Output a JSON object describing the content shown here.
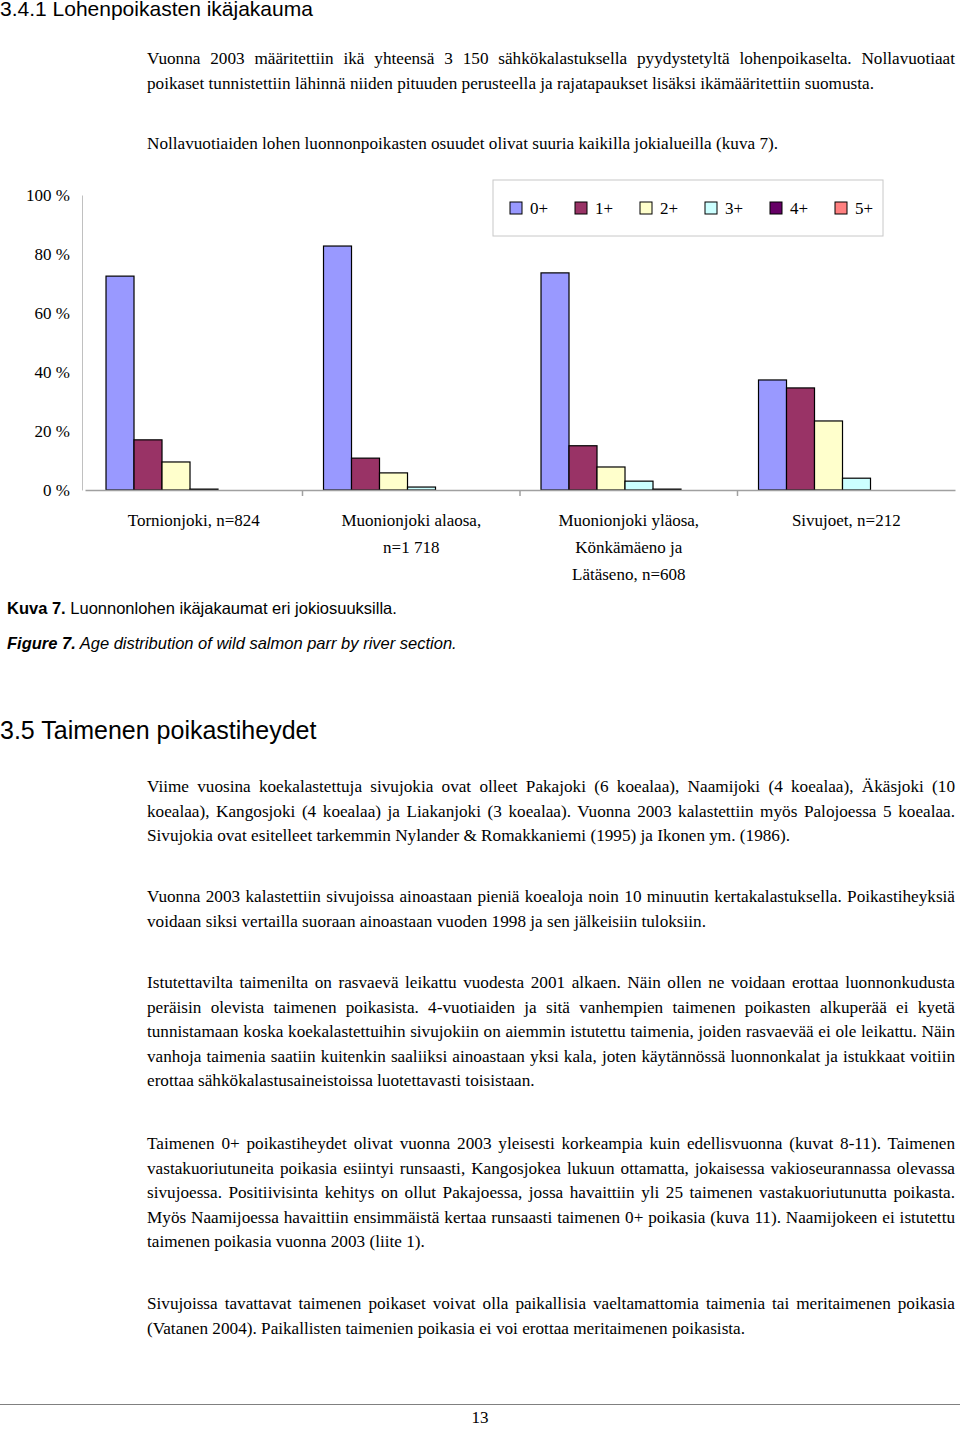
{
  "section_title": "3.4.1 Lohenpoikasten ikäjakauma",
  "paragraphs_before": [
    "Vuonna 2003 määritettiin ikä yhteensä 3 150 sähkökalastuksella pyydystetyltä lohenpoikaselta. Nollavuotiaat poikaset tunnistettiin lähinnä niiden pituuden perusteella ja rajatapaukset lisäksi ikämääritettiin suomusta.",
    "Nollavuotiaiden lohen luonnonpoikasten osuudet olivat suuria kaikilla jokialueilla (kuva 7)."
  ],
  "chart_data": {
    "type": "bar",
    "categories": [
      "Tornionjoki, n=824",
      "Muonionjoki alaosa,\nn=1 718",
      "Muonionjoki yläosa,\nKönkämäeno ja\nLätäseno, n=608",
      "Sivujoet, n=212"
    ],
    "series": [
      {
        "name": "0+",
        "color": "#9999ff",
        "values": [
          72.5,
          82.7,
          73.6,
          37.3
        ]
      },
      {
        "name": "1+",
        "color": "#993366",
        "values": [
          17,
          10.8,
          15,
          34.6
        ]
      },
      {
        "name": "2+",
        "color": "#ffffcc",
        "values": [
          9.5,
          5.8,
          7.8,
          23.4
        ]
      },
      {
        "name": "3+",
        "color": "#ccffff",
        "values": [
          0.3,
          1,
          3,
          4
        ]
      },
      {
        "name": "4+",
        "color": "#660066",
        "values": [
          0,
          0,
          0.3,
          0
        ]
      },
      {
        "name": "5+",
        "color": "#ff8080",
        "values": [
          0,
          0,
          0,
          0
        ]
      }
    ],
    "ylim": [
      0,
      100
    ],
    "yticks": [
      {
        "value": 0,
        "label": "0 %"
      },
      {
        "value": 20,
        "label": "20 %"
      },
      {
        "value": 40,
        "label": "40 %"
      },
      {
        "value": 60,
        "label": "60 %"
      },
      {
        "value": 80,
        "label": "80 %"
      },
      {
        "value": 100,
        "label": "100 %"
      }
    ],
    "grid": false,
    "legend": "top-right"
  },
  "captions": [
    {
      "label": "Kuva 7.",
      "text": "Luonnonlohen ikäjakaumat eri jokiosuuksilla."
    },
    {
      "label": "Figure 7.",
      "text": "Age distribution of wild salmon parr by river section."
    }
  ],
  "section2_title": "3.5 Taimenen poikastiheydet",
  "paragraphs_after": [
    "Viime vuosina koekalastettuja sivujokia ovat olleet Pakajoki (6 koealaa), Naamijoki (4 koealaa), Äkäsjoki (10 koealaa), Kangosjoki (4 koealaa) ja Liakanjoki (3 koealaa). Vuonna 2003 kalastettiin myös Palojoessa 5 koealaa. Sivujokia ovat esitelleet tarkemmin Nylander & Romakkaniemi (1995) ja Ikonen ym. (1986).",
    "Vuonna 2003 kalastettiin sivujoissa ainoastaan pieniä koealoja noin 10 minuutin kertakalastuksella. Poikastiheyksiä voidaan siksi vertailla suoraan ainoastaan vuoden 1998 ja sen jälkeisiin tuloksiin.",
    "Istutettavilta taimenilta on rasvaevä leikattu vuodesta 2001 alkaen. Näin ollen ne voidaan erottaa luonnonkudusta peräisin olevista taimenen poikasista. 4-vuotiaiden ja sitä vanhempien taimenen poikasten alkuperää ei kyetä tunnistamaan koska koekalastettuihin sivujokiin on aiemmin istutettu taimenia, joiden rasvaevää ei ole leikattu. Näin vanhoja taimenia saatiin kuitenkin saaliiksi ainoastaan yksi kala, joten käytännössä luonnonkalat ja istukkaat voitiin erottaa sähkökalastusaineistoissa luotettavasti toisistaan.",
    "Taimenen 0+ poikastiheydet olivat vuonna 2003 yleisesti korkeampia kuin edellisvuonna (kuvat 8-11). Taimenen vastakuoriutuneita poikasia esiintyi runsaasti, Kangosjokea lukuun ottamatta, jokaisessa vakioseurannassa olevassa sivujoessa. Positiivisinta kehitys on ollut Pakajoessa, jossa havaittiin yli 25 taimenen vastakuoriutunutta poikasta. Myös Naamijoessa havaittiin ensimmäistä kertaa runsaasti taimenen 0+ poikasia (kuva 11). Naamijokeen ei istutettu taimenen poikasia vuonna 2003 (liite 1).",
    "Sivujoissa tavattavat taimenen poikaset voivat olla paikallisia vaeltamattomia taimenia tai meritaimenen poikasia (Vatanen 2004). Paikallisten taimenien poikasia ei voi erottaa meritaimenen poikasista."
  ],
  "page_number": 13
}
